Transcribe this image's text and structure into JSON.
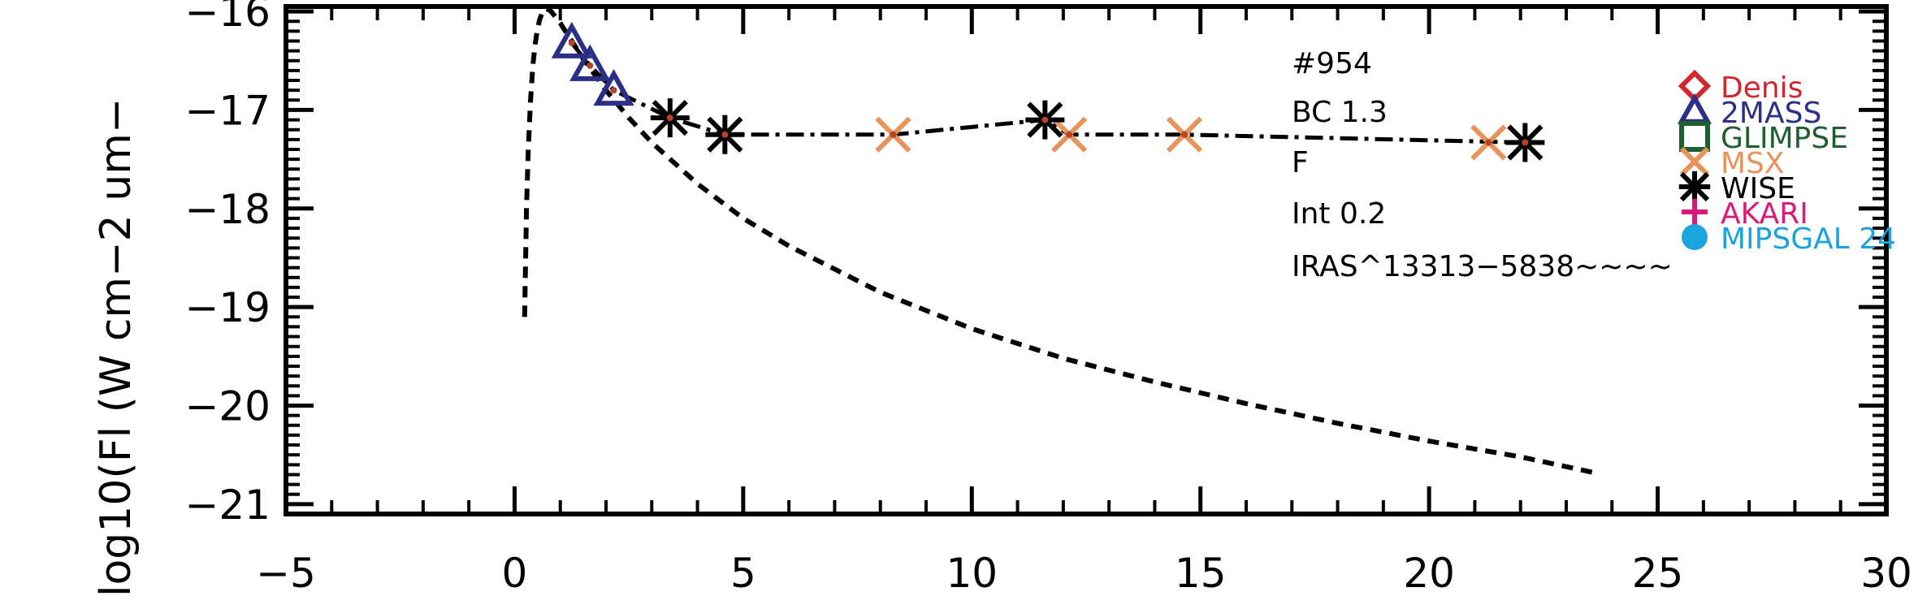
{
  "chart_data": {
    "type": "scatter",
    "ylabel": "log10(Fl (W cm−2 um−",
    "xlim": [
      -5,
      30
    ],
    "ylim": [
      -21.1,
      -15.95
    ],
    "x_ticks": [
      -5,
      0,
      5,
      10,
      15,
      20,
      25,
      30
    ],
    "x_tick_labels": [
      "−5",
      "0",
      "5",
      "10",
      "15",
      "20",
      "25",
      "30"
    ],
    "y_ticks": [
      -21,
      -20,
      -19,
      -18,
      -17,
      -16
    ],
    "y_tick_labels": [
      "−21",
      "−20",
      "−19",
      "−18",
      "−17",
      "−16"
    ],
    "annotations": [
      "#954",
      "BC 1.3",
      "F",
      "Int 0.2",
      "IRAS^13313−5838~~~~"
    ],
    "legend_placement": "right",
    "legend": [
      {
        "label": "Denis",
        "marker": "diamond",
        "color": "#d1262e"
      },
      {
        "label": "2MASS",
        "marker": "triangle",
        "color": "#2b2f86"
      },
      {
        "label": "GLIMPSE",
        "marker": "square",
        "color": "#1f5e2e"
      },
      {
        "label": "MSX",
        "marker": "x",
        "color": "#e8935a"
      },
      {
        "label": "WISE",
        "marker": "asterisk",
        "color": "#000000"
      },
      {
        "label": "AKARI",
        "marker": "plus",
        "color": "#d81b7a"
      },
      {
        "label": "MIPSGAL 24",
        "marker": "circle",
        "color": "#1aa3dc"
      }
    ],
    "sed_line": {
      "style": "dash-dot",
      "x": [
        1.25,
        1.65,
        2.17,
        3.4,
        4.6,
        8.28,
        11.6,
        12.13,
        14.65,
        22.1
      ],
      "y": [
        -16.32,
        -16.55,
        -16.8,
        -17.08,
        -17.25,
        -17.25,
        -17.1,
        -17.25,
        -17.25,
        -17.33
      ]
    },
    "blackbody_curve": {
      "style": "dashed",
      "x": [
        0.22,
        0.26,
        0.3,
        0.35,
        0.4,
        0.45,
        0.5,
        0.55,
        0.6,
        0.7,
        0.8,
        1.0,
        1.25,
        1.5,
        2.0,
        2.5,
        3.0,
        4.0,
        5.0,
        6.0,
        8.0,
        10.0,
        12.0,
        14.0,
        16.0,
        18.0,
        20.0,
        22.0,
        23.6
      ],
      "y": [
        -19.1,
        -18.0,
        -17.4,
        -16.9,
        -16.55,
        -16.33,
        -16.18,
        -16.08,
        -16.02,
        -15.97,
        -16.0,
        -16.12,
        -16.3,
        -16.48,
        -16.8,
        -17.08,
        -17.33,
        -17.75,
        -18.1,
        -18.38,
        -18.85,
        -19.22,
        -19.52,
        -19.76,
        -19.98,
        -20.18,
        -20.36,
        -20.52,
        -20.68
      ]
    },
    "series": [
      {
        "name": "2MASS",
        "marker": "triangle",
        "x": [
          1.25,
          1.65,
          2.17
        ],
        "y": [
          -16.32,
          -16.55,
          -16.8
        ]
      },
      {
        "name": "MSX",
        "marker": "x",
        "x": [
          8.28,
          12.13,
          14.65,
          21.3
        ],
        "y": [
          -17.25,
          -17.25,
          -17.25,
          -17.33
        ]
      },
      {
        "name": "WISE",
        "marker": "asterisk",
        "x": [
          3.4,
          4.6,
          11.6,
          22.1
        ],
        "y": [
          -17.08,
          -17.25,
          -17.1,
          -17.33
        ]
      }
    ]
  }
}
